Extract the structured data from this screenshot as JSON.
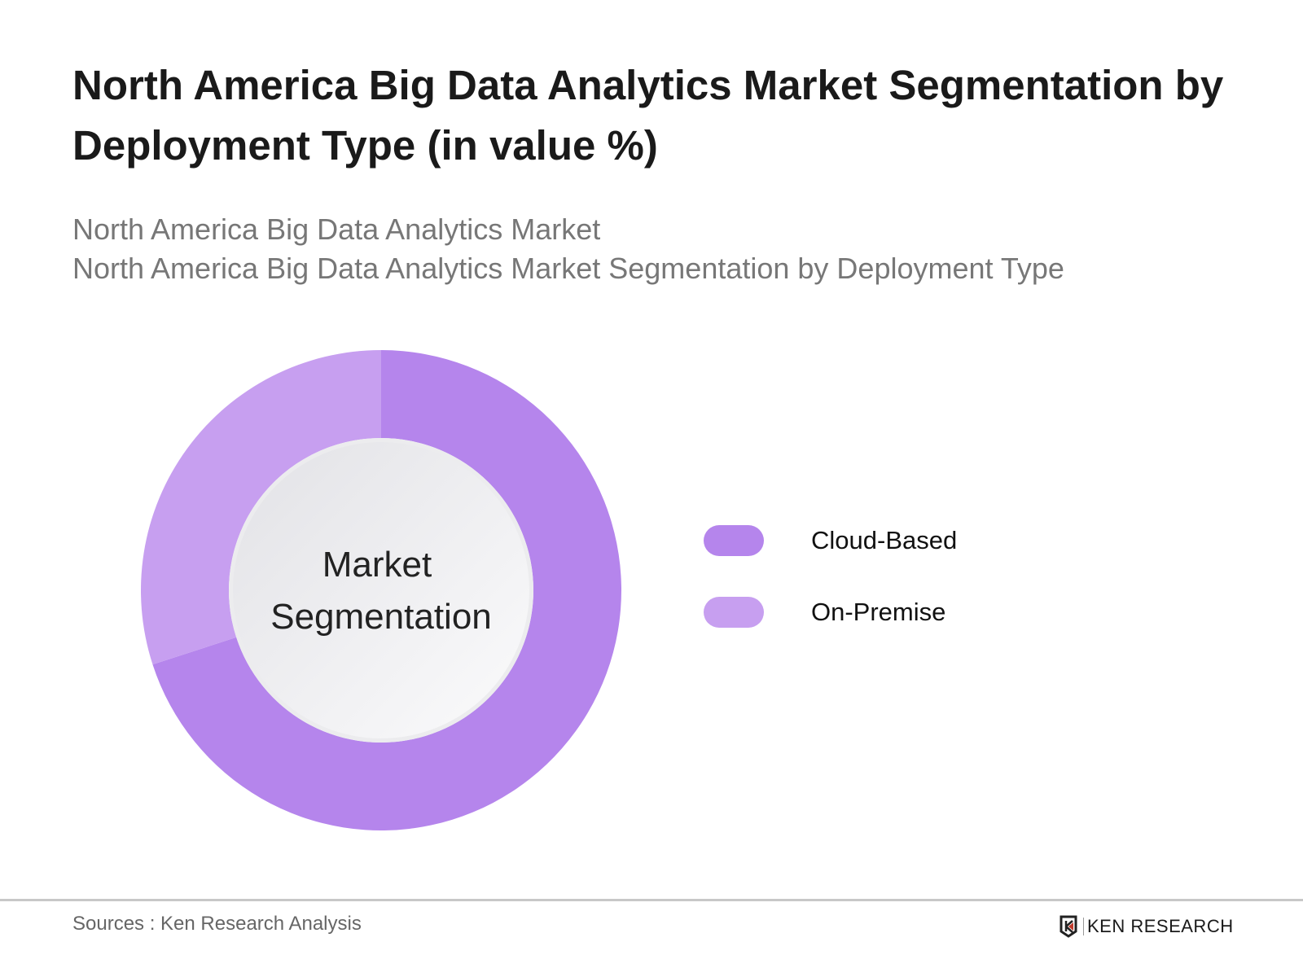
{
  "title": "North America Big Data Analytics Market Segmentation by Deployment Type (in value %)",
  "subtitle_lines": [
    "North America Big Data Analytics Market",
    "North America Big Data Analytics Market Segmentation by Deployment Type"
  ],
  "center_label": [
    "Market",
    "Segmentation"
  ],
  "source": "Sources : Ken Research Analysis",
  "logo_text": "KEN RESEARCH",
  "chart_data": {
    "type": "pie",
    "variant": "donut",
    "categories": [
      "Cloud-Based",
      "On-Premise"
    ],
    "values": [
      70,
      30
    ],
    "colors": [
      "#b585ec",
      "#c79ff0"
    ],
    "legend_placement": "right"
  }
}
